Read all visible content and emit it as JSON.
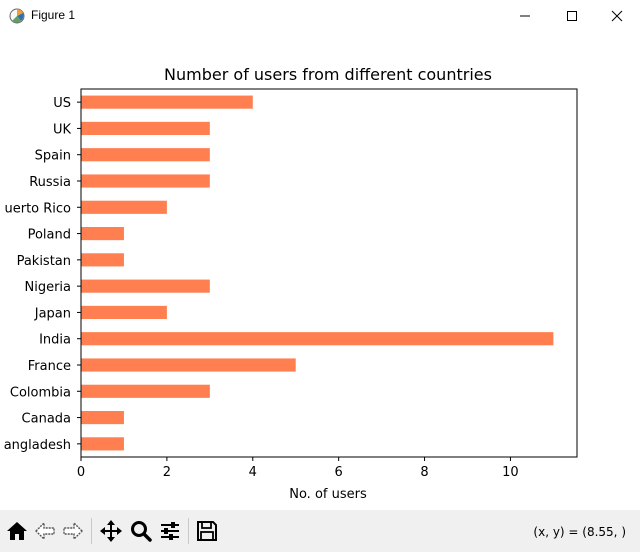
{
  "window": {
    "title": "Figure 1",
    "icon": "matplotlib-figure-icon",
    "controls": [
      "minimize-icon",
      "maximize-icon",
      "close-icon"
    ]
  },
  "chart_data": {
    "type": "bar",
    "orientation": "horizontal",
    "title": "Number of users from different countries",
    "xlabel": "No. of users",
    "ylabel": "",
    "categories": [
      "Bangladesh",
      "Canada",
      "Colombia",
      "France",
      "India",
      "Japan",
      "Nigeria",
      "Pakistan",
      "Poland",
      "Puerto Rico",
      "Russia",
      "Spain",
      "UK",
      "US"
    ],
    "category_labels_visible": [
      "angladesh",
      "Canada",
      "Colombia",
      "France",
      "India",
      "Japan",
      "Nigeria",
      "Pakistan",
      "Poland",
      "uerto Rico",
      "Russia",
      "Spain",
      "UK",
      "US"
    ],
    "values": [
      1,
      1,
      3,
      5,
      11,
      2,
      3,
      1,
      1,
      2,
      3,
      3,
      3,
      4
    ],
    "xlim": [
      0,
      11.55
    ],
    "xticks": [
      0,
      2,
      4,
      6,
      8,
      10
    ],
    "bar_color": "#ff7f50",
    "grid": false,
    "legend": "none"
  },
  "toolbar": {
    "buttons": [
      {
        "name": "home-icon",
        "icon": "home"
      },
      {
        "name": "back-icon",
        "icon": "back-arrow"
      },
      {
        "name": "forward-icon",
        "icon": "forward-arrow"
      },
      {
        "name": "pan-icon",
        "icon": "move"
      },
      {
        "name": "zoom-icon",
        "icon": "magnifier"
      },
      {
        "name": "configure-subplots-icon",
        "icon": "sliders"
      },
      {
        "name": "save-icon",
        "icon": "floppy"
      }
    ],
    "coordinates": "(x, y) = (8.55, )"
  }
}
